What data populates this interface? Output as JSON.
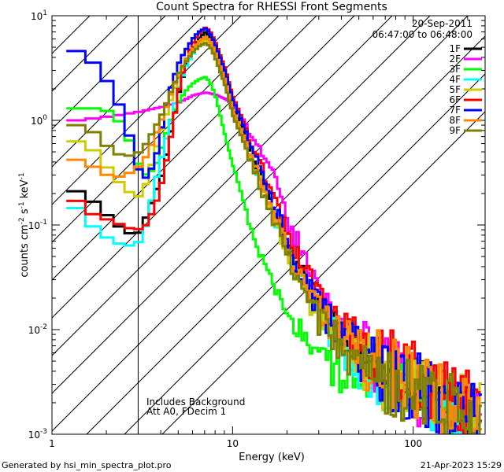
{
  "chart_data": {
    "type": "line",
    "title": "Count Spectra for RHESSI Front Segments",
    "xlabel": "Energy (keV)",
    "ylabel_parts": [
      "counts cm",
      "-2",
      " s",
      "-1",
      " keV",
      "-1"
    ],
    "x_scale": "log",
    "y_scale": "log",
    "xlim": [
      1,
      250
    ],
    "ylim": [
      0.001,
      10
    ],
    "x_ticks": [
      {
        "value": 1,
        "label": "1"
      },
      {
        "value": 10,
        "label": "10"
      },
      {
        "value": 100,
        "label": "100"
      }
    ],
    "y_ticks": [
      {
        "value": 10,
        "base": "10",
        "exp": "1"
      },
      {
        "value": 1,
        "base": "10",
        "exp": "0"
      },
      {
        "value": 0.1,
        "base": "10",
        "exp": "-1"
      },
      {
        "value": 0.01,
        "base": "10",
        "exp": "-2"
      },
      {
        "value": 0.001,
        "base": "10",
        "exp": "-3"
      }
    ],
    "hatch_region": {
      "x_from": 1,
      "x_to": 3
    },
    "date": "20-Sep-2011",
    "time_range": "06:47:00 to 06:48:00",
    "annotations": [
      "Includes Background",
      "Att A0, FDecim 1"
    ],
    "footer_left": "Generated by hsi_min_spectra_plot.pro",
    "footer_right": "21-Apr-2023 15:29",
    "series": [
      {
        "name": "1F",
        "color": "#000000",
        "points": [
          [
            1.2,
            0.21
          ],
          [
            1.6,
            0.16
          ],
          [
            2.0,
            0.11
          ],
          [
            2.4,
            0.085
          ],
          [
            2.8,
            0.08
          ],
          [
            3.2,
            0.12
          ],
          [
            3.6,
            0.2
          ],
          [
            4.0,
            0.32
          ],
          [
            4.5,
            0.9
          ],
          [
            5.0,
            2.1
          ],
          [
            5.5,
            3.8
          ],
          [
            6.0,
            5.2
          ],
          [
            6.5,
            6.3
          ],
          [
            7.0,
            7.0
          ],
          [
            7.5,
            6.0
          ],
          [
            8.0,
            4.5
          ],
          [
            9.0,
            2.6
          ],
          [
            10,
            1.3
          ],
          [
            12,
            0.6
          ],
          [
            14,
            0.3
          ],
          [
            17,
            0.12
          ],
          [
            20,
            0.06
          ],
          [
            25,
            0.028
          ],
          [
            30,
            0.016
          ],
          [
            40,
            0.009
          ],
          [
            50,
            0.006
          ],
          [
            60,
            0.0045
          ],
          [
            80,
            0.0035
          ],
          [
            100,
            0.0028
          ],
          [
            130,
            0.0022
          ],
          [
            160,
            0.0018
          ],
          [
            200,
            0.0015
          ],
          [
            240,
            0.0014
          ]
        ]
      },
      {
        "name": "2F",
        "color": "#ff00ff",
        "points": [
          [
            1.2,
            1.0
          ],
          [
            1.6,
            1.05
          ],
          [
            2.0,
            1.1
          ],
          [
            2.4,
            1.15
          ],
          [
            2.8,
            1.2
          ],
          [
            3.2,
            1.25
          ],
          [
            4.0,
            1.35
          ],
          [
            5.0,
            1.5
          ],
          [
            6.0,
            1.75
          ],
          [
            7.0,
            1.85
          ],
          [
            8.0,
            1.75
          ],
          [
            9.0,
            1.6
          ],
          [
            10,
            1.4
          ],
          [
            11,
            1.1
          ],
          [
            12,
            0.85
          ],
          [
            14,
            0.55
          ],
          [
            17,
            0.25
          ],
          [
            20,
            0.11
          ],
          [
            25,
            0.045
          ],
          [
            30,
            0.022
          ],
          [
            40,
            0.011
          ],
          [
            50,
            0.007
          ],
          [
            60,
            0.005
          ],
          [
            80,
            0.0035
          ],
          [
            100,
            0.0027
          ],
          [
            130,
            0.0021
          ],
          [
            160,
            0.0017
          ],
          [
            200,
            0.0014
          ],
          [
            240,
            0.0013
          ]
        ]
      },
      {
        "name": "3F",
        "color": "#00ff00",
        "points": [
          [
            1.2,
            1.3
          ],
          [
            1.6,
            1.3
          ],
          [
            2.0,
            1.2
          ],
          [
            2.4,
            0.8
          ],
          [
            2.8,
            0.4
          ],
          [
            3.2,
            0.3
          ],
          [
            3.6,
            0.35
          ],
          [
            4.0,
            0.6
          ],
          [
            4.5,
            1.1
          ],
          [
            5.0,
            1.6
          ],
          [
            5.5,
            2.0
          ],
          [
            6.0,
            2.3
          ],
          [
            6.5,
            2.5
          ],
          [
            7.0,
            2.6
          ],
          [
            7.5,
            2.2
          ],
          [
            8.0,
            1.6
          ],
          [
            9.0,
            0.7
          ],
          [
            10,
            0.35
          ],
          [
            12,
            0.12
          ],
          [
            14,
            0.05
          ],
          [
            17,
            0.025
          ],
          [
            20,
            0.014
          ],
          [
            25,
            0.008
          ],
          [
            30,
            0.005
          ],
          [
            40,
            0.004
          ],
          [
            50,
            0.0035
          ],
          [
            60,
            0.003
          ],
          [
            80,
            0.0026
          ],
          [
            100,
            0.0022
          ],
          [
            130,
            0.0018
          ],
          [
            160,
            0.0015
          ],
          [
            200,
            0.0013
          ],
          [
            240,
            0.0012
          ]
        ]
      },
      {
        "name": "4F",
        "color": "#00ffff",
        "points": [
          [
            1.2,
            0.145
          ],
          [
            1.6,
            0.09
          ],
          [
            2.0,
            0.07
          ],
          [
            2.4,
            0.063
          ],
          [
            2.8,
            0.065
          ],
          [
            3.2,
            0.1
          ],
          [
            3.6,
            0.25
          ],
          [
            4.0,
            0.5
          ],
          [
            4.5,
            1.1
          ],
          [
            5.0,
            2.3
          ],
          [
            5.5,
            3.5
          ],
          [
            6.0,
            4.5
          ],
          [
            6.5,
            5.5
          ],
          [
            7.0,
            6.0
          ],
          [
            7.5,
            5.2
          ],
          [
            8.0,
            4.0
          ],
          [
            9.0,
            2.3
          ],
          [
            10,
            1.1
          ],
          [
            12,
            0.5
          ],
          [
            14,
            0.25
          ],
          [
            17,
            0.1
          ],
          [
            20,
            0.05
          ],
          [
            25,
            0.022
          ],
          [
            30,
            0.012
          ],
          [
            40,
            0.007
          ],
          [
            50,
            0.005
          ],
          [
            60,
            0.004
          ],
          [
            80,
            0.003
          ],
          [
            100,
            0.0025
          ],
          [
            130,
            0.002
          ],
          [
            160,
            0.0017
          ],
          [
            200,
            0.0014
          ],
          [
            240,
            0.0013
          ]
        ]
      },
      {
        "name": "5F",
        "color": "#cccc00",
        "points": [
          [
            1.2,
            0.63
          ],
          [
            1.6,
            0.5
          ],
          [
            2.0,
            0.3
          ],
          [
            2.4,
            0.22
          ],
          [
            2.8,
            0.18
          ],
          [
            3.2,
            0.25
          ],
          [
            3.6,
            0.5
          ],
          [
            4.0,
            0.9
          ],
          [
            4.5,
            1.7
          ],
          [
            5.0,
            2.8
          ],
          [
            5.5,
            3.8
          ],
          [
            6.0,
            4.8
          ],
          [
            6.5,
            5.6
          ],
          [
            7.0,
            5.9
          ],
          [
            7.5,
            5.1
          ],
          [
            8.0,
            3.9
          ],
          [
            9.0,
            2.2
          ],
          [
            10,
            1.1
          ],
          [
            12,
            0.5
          ],
          [
            14,
            0.25
          ],
          [
            17,
            0.1
          ],
          [
            20,
            0.05
          ],
          [
            25,
            0.022
          ],
          [
            30,
            0.013
          ],
          [
            40,
            0.008
          ],
          [
            50,
            0.0055
          ],
          [
            60,
            0.0042
          ],
          [
            80,
            0.0033
          ],
          [
            100,
            0.0027
          ],
          [
            130,
            0.0022
          ],
          [
            160,
            0.0019
          ],
          [
            200,
            0.0016
          ],
          [
            240,
            0.0015
          ]
        ]
      },
      {
        "name": "6F",
        "color": "#ff0000",
        "points": [
          [
            1.2,
            0.17
          ],
          [
            1.6,
            0.12
          ],
          [
            2.0,
            0.11
          ],
          [
            2.4,
            0.095
          ],
          [
            2.8,
            0.09
          ],
          [
            3.2,
            0.1
          ],
          [
            3.6,
            0.15
          ],
          [
            4.0,
            0.28
          ],
          [
            4.5,
            0.8
          ],
          [
            5.0,
            2.3
          ],
          [
            5.5,
            4.2
          ],
          [
            6.0,
            5.8
          ],
          [
            6.5,
            7.0
          ],
          [
            7.0,
            7.8
          ],
          [
            7.5,
            6.8
          ],
          [
            8.0,
            5.3
          ],
          [
            9.0,
            3.1
          ],
          [
            10,
            1.6
          ],
          [
            12,
            0.75
          ],
          [
            14,
            0.38
          ],
          [
            17,
            0.16
          ],
          [
            20,
            0.08
          ],
          [
            25,
            0.035
          ],
          [
            30,
            0.019
          ],
          [
            40,
            0.011
          ],
          [
            50,
            0.0075
          ],
          [
            60,
            0.0055
          ],
          [
            80,
            0.0042
          ],
          [
            100,
            0.0034
          ],
          [
            130,
            0.0027
          ],
          [
            160,
            0.0022
          ],
          [
            200,
            0.0018
          ],
          [
            240,
            0.0016
          ]
        ]
      },
      {
        "name": "7F",
        "color": "#0000ff",
        "points": [
          [
            1.2,
            4.6
          ],
          [
            1.6,
            3.4
          ],
          [
            2.0,
            2.0
          ],
          [
            2.4,
            1.0
          ],
          [
            2.8,
            0.35
          ],
          [
            3.2,
            0.28
          ],
          [
            3.6,
            0.4
          ],
          [
            4.0,
            1.0
          ],
          [
            4.5,
            2.3
          ],
          [
            5.0,
            3.8
          ],
          [
            5.5,
            5.0
          ],
          [
            6.0,
            6.3
          ],
          [
            6.5,
            7.2
          ],
          [
            7.0,
            7.6
          ],
          [
            7.5,
            6.5
          ],
          [
            8.0,
            5.0
          ],
          [
            9.0,
            2.9
          ],
          [
            10,
            1.5
          ],
          [
            12,
            0.7
          ],
          [
            14,
            0.35
          ],
          [
            17,
            0.14
          ],
          [
            20,
            0.07
          ],
          [
            25,
            0.03
          ],
          [
            30,
            0.016
          ],
          [
            40,
            0.009
          ],
          [
            50,
            0.006
          ],
          [
            60,
            0.0045
          ],
          [
            80,
            0.0035
          ],
          [
            100,
            0.0028
          ],
          [
            130,
            0.0022
          ],
          [
            160,
            0.0018
          ],
          [
            200,
            0.0015
          ],
          [
            240,
            0.0014
          ]
        ]
      },
      {
        "name": "8F",
        "color": "#ff8800",
        "points": [
          [
            1.2,
            0.42
          ],
          [
            1.6,
            0.35
          ],
          [
            2.0,
            0.28
          ],
          [
            2.4,
            0.3
          ],
          [
            2.8,
            0.35
          ],
          [
            3.2,
            0.45
          ],
          [
            3.6,
            0.7
          ],
          [
            4.0,
            1.1
          ],
          [
            4.5,
            1.9
          ],
          [
            5.0,
            3.0
          ],
          [
            5.5,
            4.0
          ],
          [
            6.0,
            5.0
          ],
          [
            6.5,
            5.8
          ],
          [
            7.0,
            6.3
          ],
          [
            7.5,
            5.5
          ],
          [
            8.0,
            4.2
          ],
          [
            9.0,
            2.4
          ],
          [
            10,
            1.2
          ],
          [
            12,
            0.55
          ],
          [
            14,
            0.28
          ],
          [
            17,
            0.11
          ],
          [
            20,
            0.055
          ],
          [
            25,
            0.025
          ],
          [
            30,
            0.014
          ],
          [
            40,
            0.0085
          ],
          [
            50,
            0.006
          ],
          [
            60,
            0.0047
          ],
          [
            80,
            0.0037
          ],
          [
            100,
            0.003
          ],
          [
            130,
            0.0024
          ],
          [
            160,
            0.002
          ],
          [
            200,
            0.0017
          ],
          [
            240,
            0.0016
          ]
        ]
      },
      {
        "name": "9F",
        "color": "#808000",
        "points": [
          [
            1.2,
            0.9
          ],
          [
            1.6,
            0.75
          ],
          [
            2.0,
            0.5
          ],
          [
            2.4,
            0.45
          ],
          [
            2.8,
            0.48
          ],
          [
            3.2,
            0.6
          ],
          [
            3.6,
            0.85
          ],
          [
            4.0,
            1.2
          ],
          [
            4.5,
            2.0
          ],
          [
            5.0,
            3.0
          ],
          [
            5.5,
            3.8
          ],
          [
            6.0,
            4.6
          ],
          [
            6.5,
            5.2
          ],
          [
            7.0,
            5.5
          ],
          [
            7.5,
            4.8
          ],
          [
            8.0,
            3.7
          ],
          [
            9.0,
            2.1
          ],
          [
            10,
            1.05
          ],
          [
            12,
            0.48
          ],
          [
            14,
            0.24
          ],
          [
            17,
            0.1
          ],
          [
            20,
            0.05
          ],
          [
            25,
            0.022
          ],
          [
            30,
            0.012
          ],
          [
            40,
            0.0072
          ],
          [
            50,
            0.005
          ],
          [
            60,
            0.004
          ],
          [
            80,
            0.0031
          ],
          [
            100,
            0.0025
          ],
          [
            130,
            0.002
          ],
          [
            160,
            0.0017
          ],
          [
            200,
            0.0014
          ],
          [
            240,
            0.0013
          ]
        ]
      }
    ]
  }
}
